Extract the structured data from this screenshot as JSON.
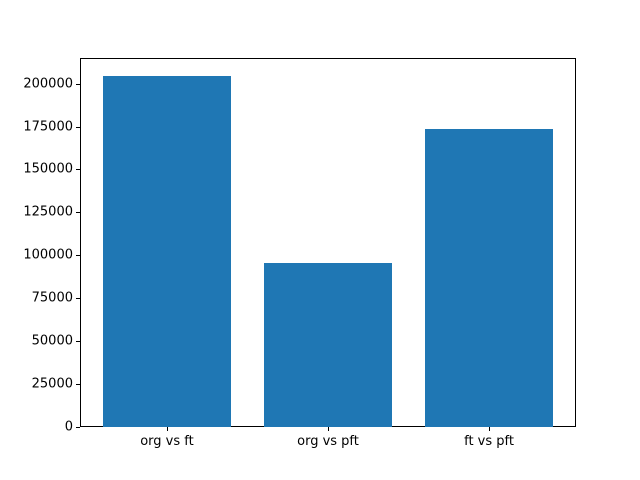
{
  "chart_data": {
    "type": "bar",
    "categories": [
      "org vs ft",
      "org vs pft",
      "ft vs pft"
    ],
    "values": [
      204700,
      95300,
      173400
    ],
    "title": "",
    "xlabel": "",
    "ylabel": "",
    "ylim": [
      0,
      214900
    ],
    "yticks": [
      0,
      25000,
      50000,
      75000,
      100000,
      125000,
      150000,
      175000,
      200000
    ],
    "ytick_labels": [
      "0",
      "25000",
      "50000",
      "75000",
      "100000",
      "125000",
      "150000",
      "175000",
      "200000"
    ],
    "grid": false,
    "legend": "none",
    "bar_width_fraction": 0.8,
    "bar_color": "#1f77b4",
    "spine_color": "#000000",
    "background_color": "#ffffff"
  }
}
